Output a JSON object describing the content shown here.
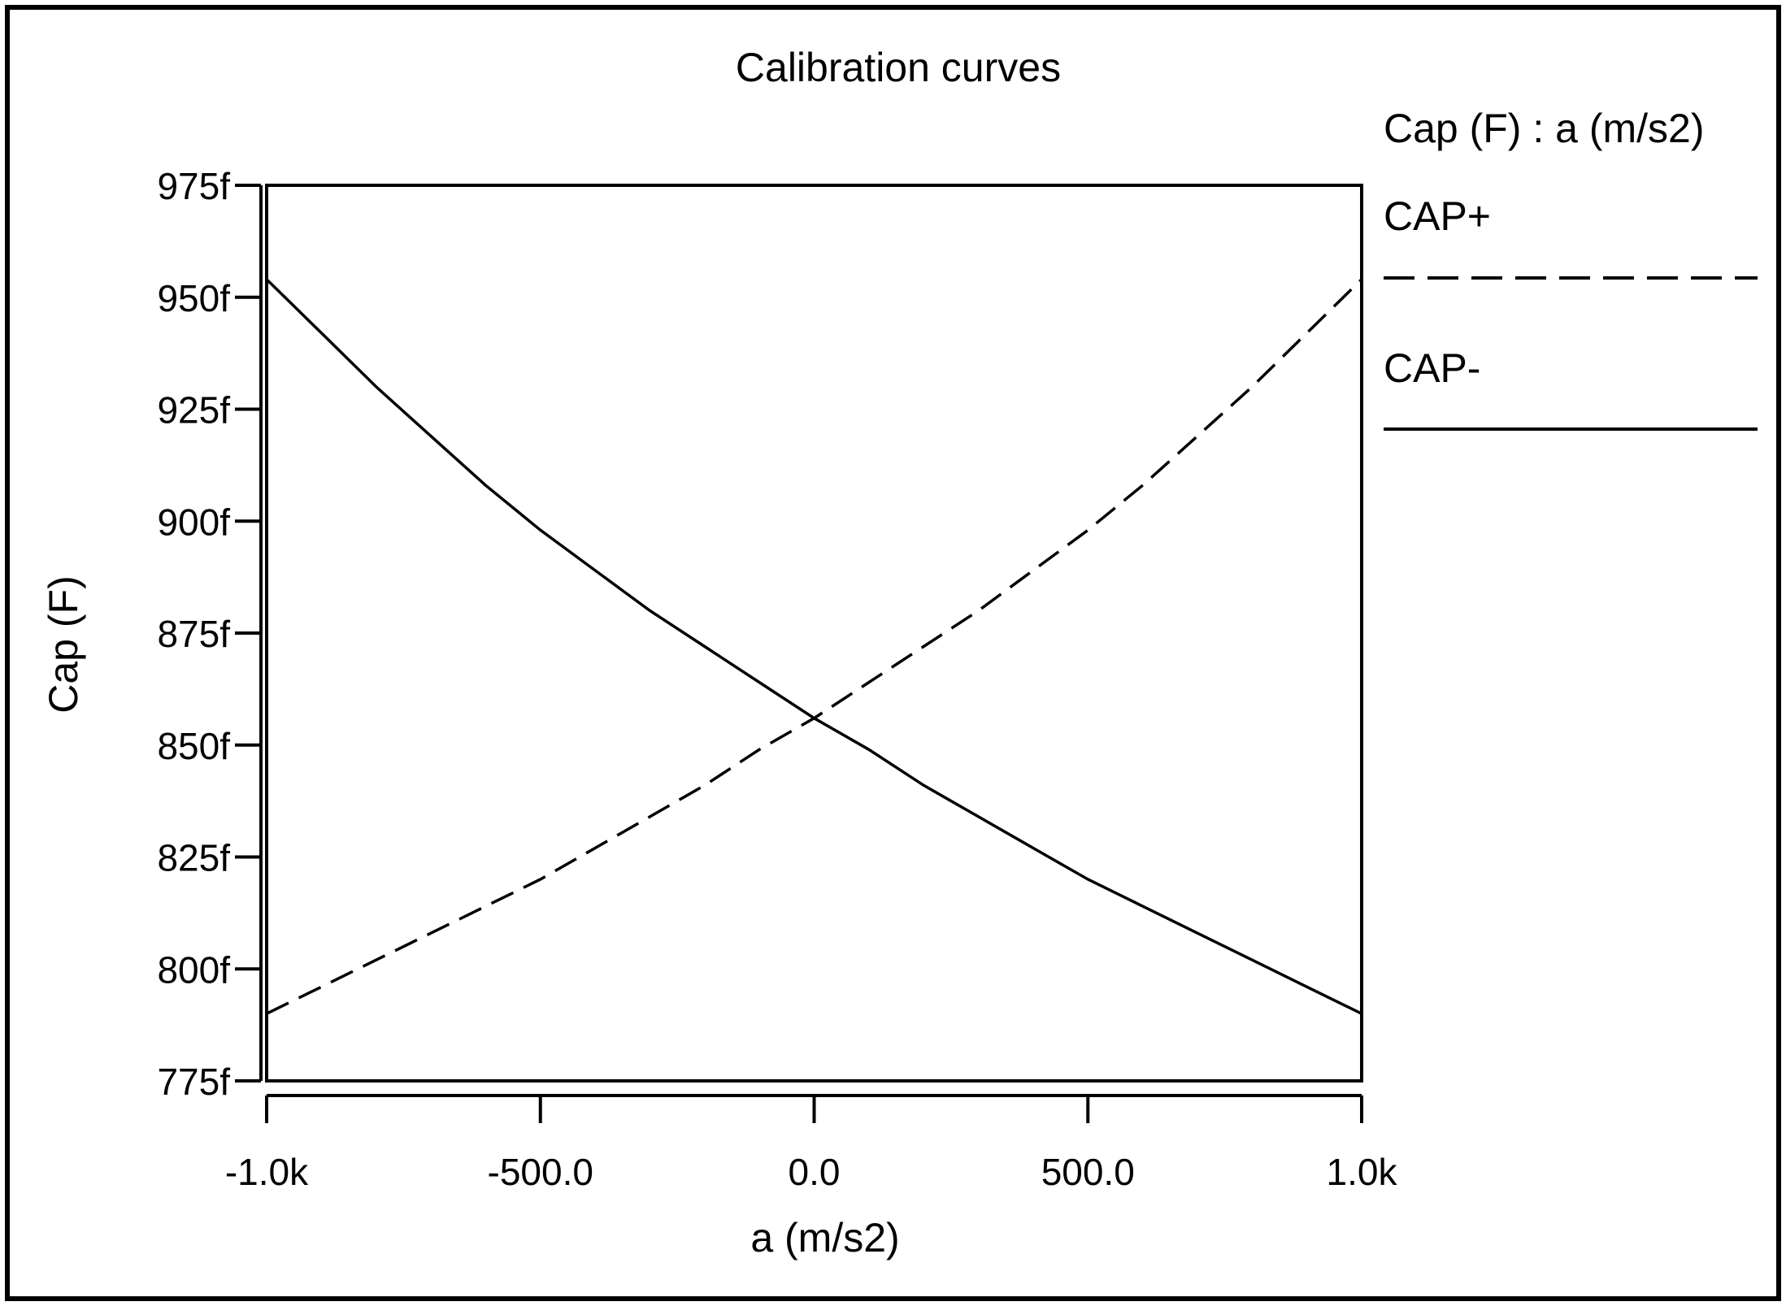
{
  "chart_data": {
    "type": "line",
    "title": "Calibration curves",
    "xlabel": "a (m/s2)",
    "ylabel": "Cap (F)",
    "xlim": [
      -1000,
      1000
    ],
    "ylim": [
      775,
      975
    ],
    "y_unit_suffix": "f",
    "x_ticks": [
      -1000,
      -500,
      0,
      500,
      1000
    ],
    "x_tick_labels": [
      "-1.0k",
      "-500.0",
      "0.0",
      "500.0",
      "1.0k"
    ],
    "y_ticks": [
      775,
      800,
      825,
      850,
      875,
      900,
      925,
      950,
      975
    ],
    "y_tick_labels": [
      "775f",
      "800f",
      "825f",
      "850f",
      "875f",
      "900f",
      "925f",
      "950f",
      "975f"
    ],
    "grid": false,
    "legend_position": "right",
    "legend_title": "Cap (F) : a (m/s2)",
    "x": [
      -1000,
      -900,
      -800,
      -700,
      -600,
      -500,
      -400,
      -300,
      -200,
      -100,
      0,
      100,
      200,
      300,
      400,
      500,
      600,
      700,
      800,
      900,
      1000
    ],
    "series": [
      {
        "name": "CAP+",
        "style": "dashed",
        "color": "#000000",
        "values": [
          790,
          796,
          802,
          808,
          814,
          820,
          827,
          834,
          841,
          849,
          856,
          864,
          872,
          880,
          889,
          898,
          908,
          919,
          930,
          942,
          954
        ]
      },
      {
        "name": "CAP-",
        "style": "solid",
        "color": "#000000",
        "values": [
          954,
          942,
          930,
          919,
          908,
          898,
          889,
          880,
          872,
          864,
          856,
          849,
          841,
          834,
          827,
          820,
          814,
          808,
          802,
          796,
          790
        ]
      }
    ]
  }
}
